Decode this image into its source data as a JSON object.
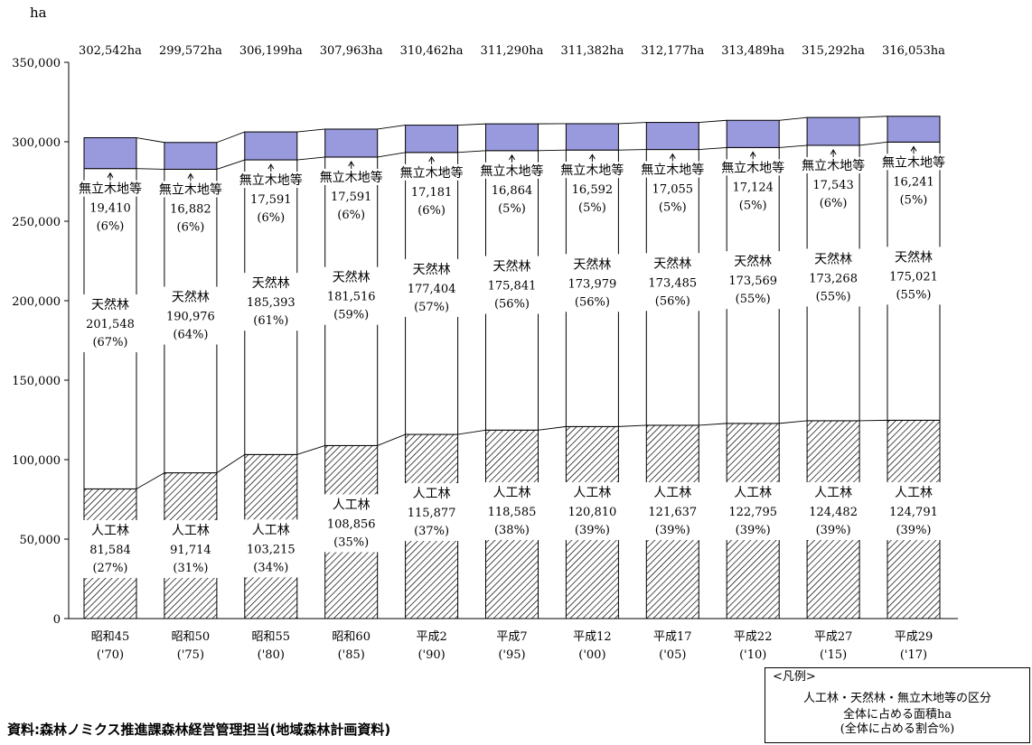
{
  "chart_data": {
    "type": "bar",
    "stacked": true,
    "ylabel": "ha",
    "ylim": [
      0,
      350000
    ],
    "yticks": [
      "0",
      "50,000",
      "100,000",
      "150,000",
      "200,000",
      "250,000",
      "300,000",
      "350,000"
    ],
    "categories": [
      {
        "line1": "昭和45",
        "line2": "('70)"
      },
      {
        "line1": "昭和50",
        "line2": "('75)"
      },
      {
        "line1": "昭和55",
        "line2": "('80)"
      },
      {
        "line1": "昭和60",
        "line2": "('85)"
      },
      {
        "line1": "平成2",
        "line2": "('90)"
      },
      {
        "line1": "平成7",
        "line2": "('95)"
      },
      {
        "line1": "平成12",
        "line2": "('00)"
      },
      {
        "line1": "平成17",
        "line2": "('05)"
      },
      {
        "line1": "平成22",
        "line2": "('10)"
      },
      {
        "line1": "平成27",
        "line2": "('15)"
      },
      {
        "line1": "平成29",
        "line2": "('17)"
      }
    ],
    "totals": [
      "302,542ha",
      "299,572ha",
      "306,199ha",
      "307,963ha",
      "310,462ha",
      "311,290ha",
      "311,382ha",
      "312,177ha",
      "313,489ha",
      "315,292ha",
      "316,053ha"
    ],
    "series": [
      {
        "name": "人工林",
        "values": [
          81584,
          91714,
          103215,
          108856,
          115877,
          118585,
          120810,
          121637,
          122795,
          124482,
          124791
        ],
        "value_labels": [
          "81,584",
          "91,714",
          "103,215",
          "108,856",
          "115,877",
          "118,585",
          "120,810",
          "121,637",
          "122,795",
          "124,482",
          "124,791"
        ],
        "pct_labels": [
          "(27%)",
          "(31%)",
          "(34%)",
          "(35%)",
          "(37%)",
          "(38%)",
          "(39%)",
          "(39%)",
          "(39%)",
          "(39%)",
          "(39%)"
        ],
        "fill": "hatch"
      },
      {
        "name": "天然林",
        "values": [
          201548,
          190976,
          185393,
          181516,
          177404,
          175841,
          173979,
          173485,
          173569,
          173268,
          175021
        ],
        "value_labels": [
          "201,548",
          "190,976",
          "185,393",
          "181,516",
          "177,404",
          "175,841",
          "173,979",
          "173,485",
          "173,569",
          "173,268",
          "175,021"
        ],
        "pct_labels": [
          "(67%)",
          "(64%)",
          "(61%)",
          "(59%)",
          "(57%)",
          "(56%)",
          "(56%)",
          "(56%)",
          "(55%)",
          "(55%)",
          "(55%)"
        ],
        "color": "#ffffff"
      },
      {
        "name": "無立木地等",
        "values": [
          19410,
          16882,
          17591,
          17591,
          17181,
          16864,
          16592,
          17055,
          17124,
          17543,
          16241
        ],
        "value_labels": [
          "19,410",
          "16,882",
          "17,591",
          "17,591",
          "17,181",
          "16,864",
          "16,592",
          "17,055",
          "17,124",
          "17,543",
          "16,241"
        ],
        "pct_labels": [
          "(6%)",
          "(6%)",
          "(6%)",
          "(6%)",
          "(6%)",
          "(5%)",
          "(5%)",
          "(5%)",
          "(5%)",
          "(6%)",
          "(5%)"
        ],
        "color": "#9999dd"
      }
    ],
    "grid": false,
    "legend_placement": "bottom-right"
  },
  "source_note": "資料:森林ノミクス推進課森林経営管理担当(地域森林計画資料)",
  "legend_box": {
    "title": "<凡例>",
    "line1": "人工林・天然林・無立木地等の区分",
    "line2": "全体に占める面積ha",
    "line3": "(全体に占める割合%)"
  }
}
